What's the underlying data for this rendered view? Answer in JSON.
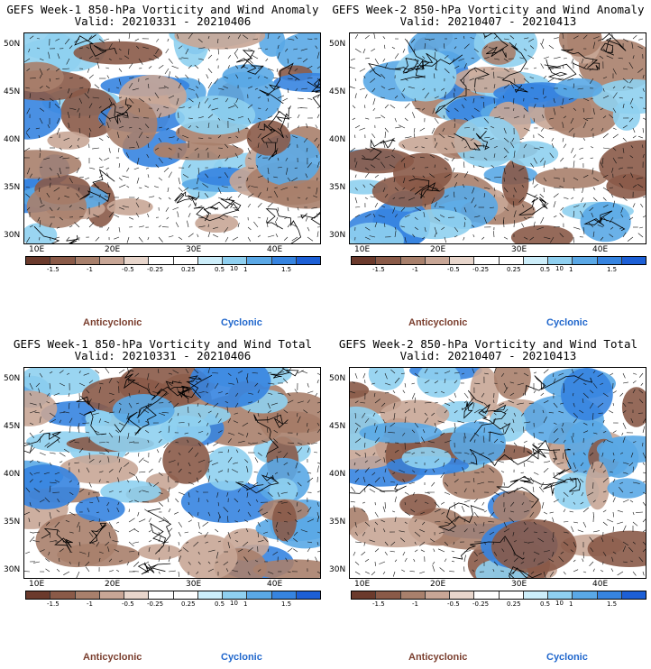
{
  "panels": [
    {
      "title": "GEFS Week-1 850-hPa Vorticity and Wind Anomaly",
      "valid": "Valid: 20210331 - 20210406",
      "seed": 11
    },
    {
      "title": "GEFS Week-2 850-hPa Vorticity and Wind Anomaly",
      "valid": "Valid: 20210407 - 20210413",
      "seed": 23
    },
    {
      "title": "GEFS Week-1 850-hPa Vorticity and Wind Total",
      "valid": "Valid: 20210331 - 20210406",
      "seed": 37
    },
    {
      "title": "GEFS Week-2 850-hPa Vorticity and Wind Total",
      "valid": "Valid: 20210407 - 20210413",
      "seed": 53
    }
  ],
  "lat_labels": [
    "50N",
    "45N",
    "40N",
    "35N",
    "30N"
  ],
  "lon_labels": [
    "10E",
    "20E",
    "30E",
    "40E"
  ],
  "colorbar": {
    "labels": [
      "-1.5",
      "-1",
      "-0.5",
      "-0.25",
      "0.25",
      "0.5",
      "1",
      "1.5"
    ],
    "unit_mark": "10",
    "colors": [
      "#6b3a2c",
      "#8a5a48",
      "#a8806c",
      "#c8a696",
      "#e8d6cc",
      "#ffffff",
      "#ffffff",
      "#cdeefa",
      "#8fd0f0",
      "#5aa8e6",
      "#3684e0",
      "#1c5fd6"
    ]
  },
  "legend": {
    "anticyclonic": "Anticyclonic",
    "cyclonic": "Cyclonic"
  }
}
